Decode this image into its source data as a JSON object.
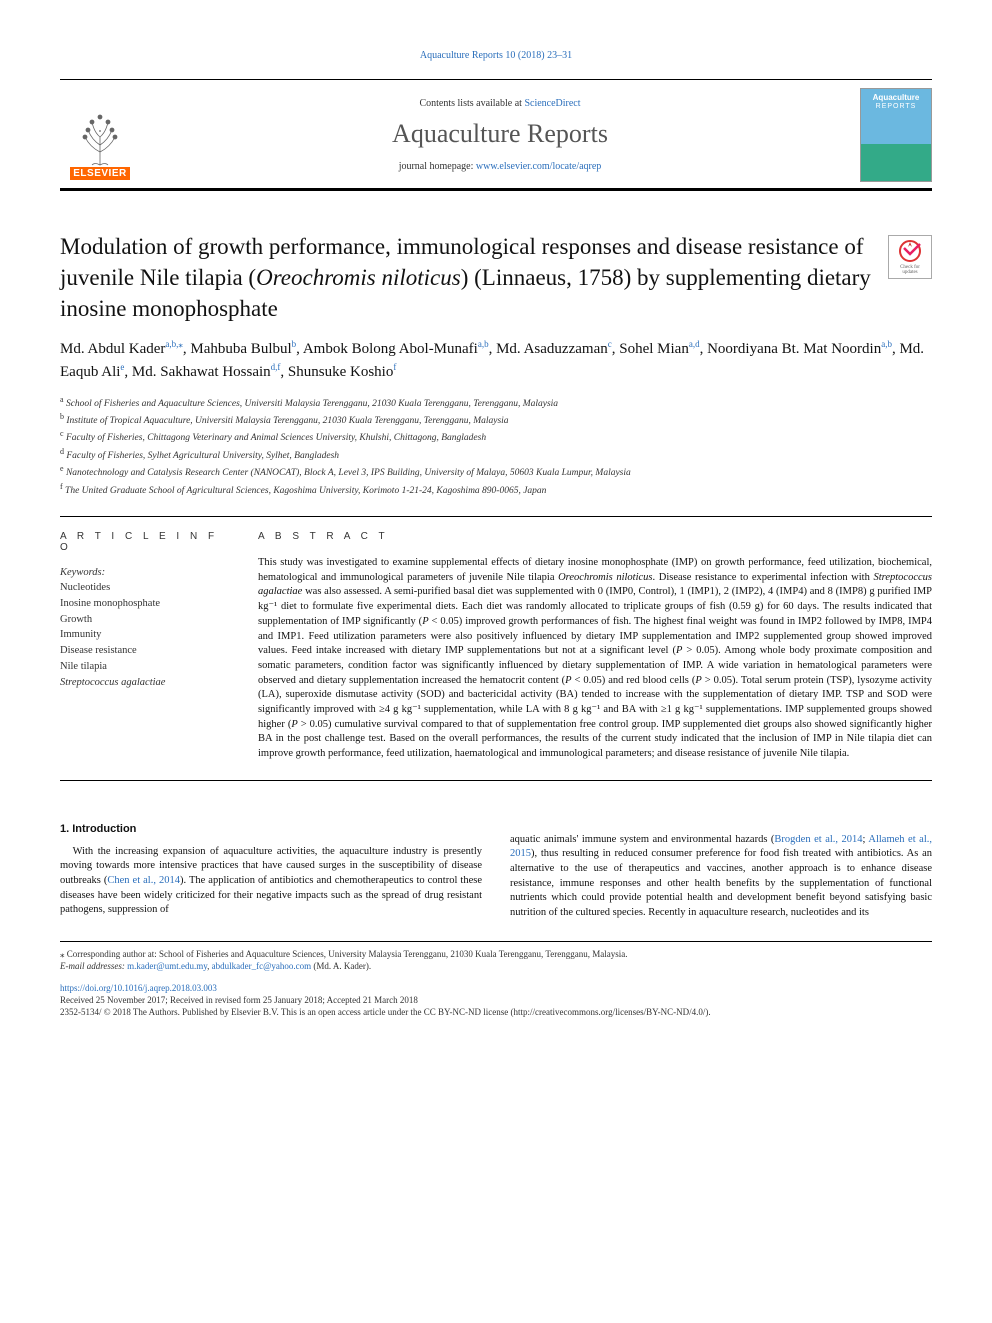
{
  "top_link": "Aquaculture Reports 10 (2018) 23–31",
  "header": {
    "contents_prefix": "Contents lists available at ",
    "contents_link": "ScienceDirect",
    "journal_name": "Aquaculture Reports",
    "homepage_prefix": "journal homepage: ",
    "homepage_link": "www.elsevier.com/locate/aqrep",
    "elsevier_label": "ELSEVIER",
    "cover_main": "Aquaculture",
    "cover_sub": "REPORTS"
  },
  "check_updates": {
    "line1": "Check for",
    "line2": "updates"
  },
  "title": {
    "pre": "Modulation of growth performance, immunological responses and disease resistance of juvenile Nile tilapia (",
    "italic": "Oreochromis niloticus",
    "post": ") (Linnaeus, 1758) by supplementing dietary inosine monophosphate"
  },
  "authors": [
    {
      "name": "Md. Abdul Kader",
      "sup": "a,b,",
      "star": "⁎"
    },
    {
      "name": "Mahbuba Bulbul",
      "sup": "b"
    },
    {
      "name": "Ambok Bolong Abol-Munafi",
      "sup": "a,b"
    },
    {
      "name": "Md. Asaduzzaman",
      "sup": "c"
    },
    {
      "name": "Sohel Mian",
      "sup": "a,d"
    },
    {
      "name": "Noordiyana Bt. Mat Noordin",
      "sup": "a,b"
    },
    {
      "name": "Md. Eaqub Ali",
      "sup": "e"
    },
    {
      "name": "Md. Sakhawat Hossain",
      "sup": "d,f"
    },
    {
      "name": "Shunsuke Koshio",
      "sup": "f"
    }
  ],
  "affiliations": [
    {
      "key": "a",
      "text": "School of Fisheries and Aquaculture Sciences, Universiti Malaysia Terengganu, 21030 Kuala Terengganu, Terengganu, Malaysia"
    },
    {
      "key": "b",
      "text": "Institute of Tropical Aquaculture, Universiti Malaysia Terengganu, 21030 Kuala Terengganu, Terengganu, Malaysia"
    },
    {
      "key": "c",
      "text": "Faculty of Fisheries, Chittagong Veterinary and Animal Sciences University, Khulshi, Chittagong, Bangladesh"
    },
    {
      "key": "d",
      "text": "Faculty of Fisheries, Sylhet Agricultural University, Sylhet, Bangladesh"
    },
    {
      "key": "e",
      "text": "Nanotechnology and Catalysis Research Center (NANOCAT), Block A, Level 3, IPS Building, University of Malaya, 50603 Kuala Lumpur, Malaysia"
    },
    {
      "key": "f",
      "text": "The United Graduate School of Agricultural Sciences, Kagoshima University, Korimoto 1-21-24, Kagoshima 890-0065, Japan"
    }
  ],
  "info_heading": "A R T I C L E  I N F O",
  "abstract_heading": "A B S T R A C T",
  "keywords_label": "Keywords:",
  "keywords": [
    {
      "text": "Nucleotides",
      "italic": false
    },
    {
      "text": "Inosine monophosphate",
      "italic": false
    },
    {
      "text": "Growth",
      "italic": false
    },
    {
      "text": "Immunity",
      "italic": false
    },
    {
      "text": "Disease resistance",
      "italic": false
    },
    {
      "text": "Nile tilapia",
      "italic": false
    },
    {
      "text": "Streptococcus agalactiae",
      "italic": true
    }
  ],
  "abstract": "This study was investigated to examine supplemental effects of dietary inosine monophosphate (IMP) on growth performance, feed utilization, biochemical, hematological and immunological parameters of juvenile Nile tilapia <i>Oreochromis niloticus</i>. Disease resistance to experimental infection with <i>Streptococcus agalactiae</i> was also assessed. A semi-purified basal diet was supplemented with 0 (IMP0, Control), 1 (IMP1), 2 (IMP2), 4 (IMP4) and 8 (IMP8) g purified IMP kg⁻¹ diet to formulate five experimental diets. Each diet was randomly allocated to triplicate groups of fish (0.59 g) for 60 days. The results indicated that supplementation of IMP significantly (<i>P</i> < 0.05) improved growth performances of fish. The highest final weight was found in IMP2 followed by IMP8, IMP4 and IMP1. Feed utilization parameters were also positively influenced by dietary IMP supplementation and IMP2 supplemented group showed improved values. Feed intake increased with dietary IMP supplementations but not at a significant level (<i>P</i> > 0.05). Among whole body proximate composition and somatic parameters, condition factor was significantly influenced by dietary supplementation of IMP. A wide variation in hematological parameters were observed and dietary supplementation increased the hematocrit content (<i>P</i> < 0.05) and red blood cells (<i>P</i> > 0.05). Total serum protein (TSP), lysozyme activity (LA), superoxide dismutase activity (SOD) and bactericidal activity (BA) tended to increase with the supplementation of dietary IMP. TSP and SOD were significantly improved with ≥4 g kg⁻¹ supplementation, while LA with 8 g kg⁻¹ and BA with ≥1 g kg⁻¹ supplementations. IMP supplemented groups showed higher (<i>P</i> > 0.05) cumulative survival compared to that of supplementation free control group. IMP supplemented diet groups also showed significantly higher BA in the post challenge test. Based on the overall performances, the results of the current study indicated that the inclusion of IMP in Nile tilapia diet can improve growth performance, feed utilization, haematological and immunological parameters; and disease resistance of juvenile Nile tilapia.",
  "introduction_heading": "1. Introduction",
  "intro_left": "With the increasing expansion of aquaculture activities, the aquaculture industry is presently moving towards more intensive practices that have caused surges in the susceptibility of disease outbreaks (<span class=\"link\">Chen et al., 2014</span>). The application of antibiotics and chemotherapeutics to control these diseases have been widely criticized for their negative impacts such as the spread of drug resistant pathogens, suppression of",
  "intro_right": "aquatic animals' immune system and environmental hazards (<span class=\"link\">Brogden et al., 2014</span>; <span class=\"link\">Allameh et al., 2015</span>), thus resulting in reduced consumer preference for food fish treated with antibiotics. As an alternative to the use of therapeutics and vaccines, another approach is to enhance disease resistance, immune responses and other health benefits by the supplementation of functional nutrients which could provide potential health and development benefit beyond satisfying basic nutrition of the cultured species. Recently in aquaculture research, nucleotides and its",
  "footnotes": {
    "corr": "⁎ Corresponding author at: School of Fisheries and Aquaculture Sciences, University Malaysia Terengganu, 21030 Kuala Terengganu, Terengganu, Malaysia.",
    "email_label": "E-mail addresses:",
    "email1": "m.kader@umt.edu.my",
    "email2": "abdulkader_fc@yahoo.com",
    "email_suffix": " (Md. A. Kader)."
  },
  "doi": "https://doi.org/10.1016/j.aqrep.2018.03.003",
  "history": "Received 25 November 2017; Received in revised form 25 January 2018; Accepted 21 March 2018",
  "copyright": "2352-5134/ © 2018 The Authors. Published by Elsevier B.V. This is an open access article under the CC BY-NC-ND license (http://creativecommons.org/licenses/BY-NC-ND/4.0/).",
  "colors": {
    "link": "#2a6ebb",
    "elsevier_orange": "#ff6600",
    "text": "#111111",
    "muted": "#333333",
    "cover_top": "#6bb8e0",
    "cover_bottom": "#33aa88"
  },
  "typography": {
    "title_fontsize": 23,
    "journal_fontsize": 26,
    "authors_fontsize": 15,
    "body_fontsize": 10.5,
    "affil_fontsize": 9.5,
    "footnote_fontsize": 9
  }
}
